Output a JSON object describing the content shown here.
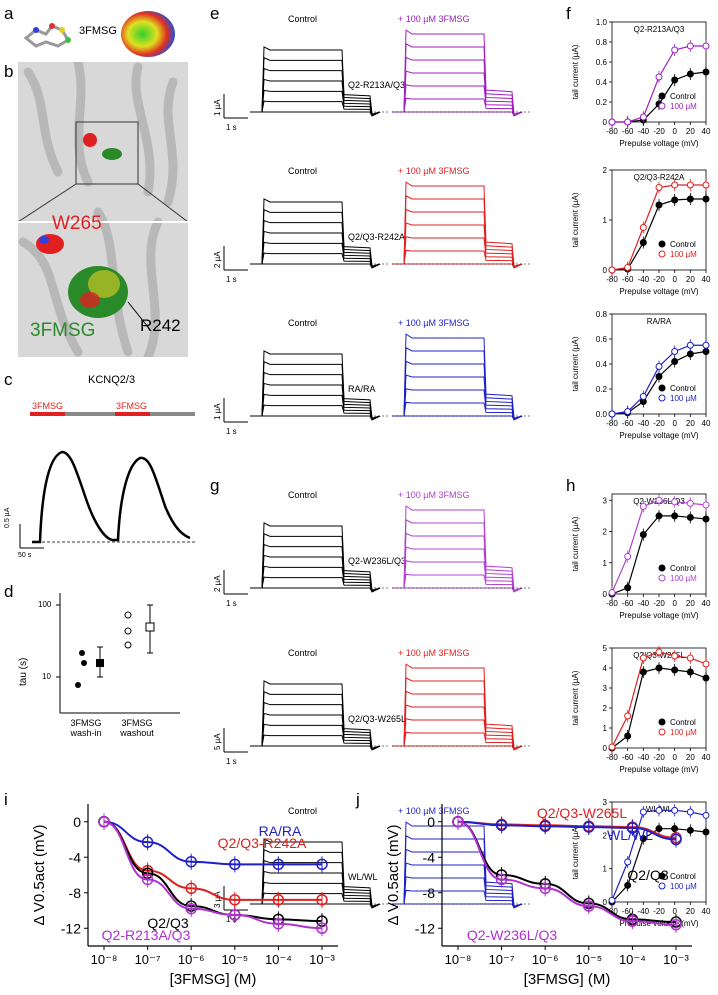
{
  "panels": {
    "a": {
      "label": "a",
      "compound": "3FMSG"
    },
    "b": {
      "label": "b",
      "residue1": "W265",
      "ligand": "3FMSG",
      "residue2": "R242"
    },
    "c": {
      "label": "c",
      "title": "KCNQ2/3",
      "drug1": "3FMSG",
      "drug2": "3FMSG",
      "scale_y": "0.5 µA",
      "scale_x": "50 s"
    },
    "d": {
      "label": "d",
      "ylabel": "tau (s)",
      "yticks": [
        "100",
        "10"
      ],
      "cat1_line1": "3FMSG",
      "cat1_line2": "wash-in",
      "cat2_line1": "3FMSG",
      "cat2_line2": "washout"
    },
    "e": {
      "label": "e",
      "rows": [
        {
          "control": "Control",
          "mutant": "Q2-R213A/Q3",
          "drug": "+ 100 µM 3FMSG",
          "scale_y": "1 µA",
          "scale_x": "1 s",
          "color": "#a020c0"
        },
        {
          "control": "Control",
          "mutant": "Q2/Q3-R242A",
          "drug": "+ 100 µM 3FMSG",
          "scale_y": "2 µA",
          "scale_x": "1 s",
          "color": "#e02020"
        },
        {
          "control": "Control",
          "mutant": "RA/RA",
          "drug": "+ 100 µM 3FMSG",
          "scale_y": "1 µA",
          "scale_x": "1 s",
          "color": "#1f1fc8"
        }
      ]
    },
    "g": {
      "label": "g",
      "rows": [
        {
          "control": "Control",
          "mutant": "Q2-W236L/Q3",
          "drug": "+ 100 µM 3FMSG",
          "scale_y": "2 µA",
          "scale_x": "1 s",
          "color": "#b040d0"
        },
        {
          "control": "Control",
          "mutant": "Q2/Q3-W265L",
          "drug": "+ 100 µM 3FMSG",
          "scale_y": "5 µA",
          "scale_x": "1 s",
          "color": "#e02020"
        },
        {
          "control": "Control",
          "mutant": "WL/WL",
          "drug": "+ 100 µM 3FMSG",
          "scale_y": "3 µA",
          "scale_x": "1 s",
          "color": "#1f1fc8"
        }
      ]
    },
    "f": {
      "label": "f"
    },
    "h": {
      "label": "h"
    },
    "i": {
      "label": "i"
    },
    "j": {
      "label": "j"
    }
  },
  "chart_data": [
    {
      "id": "f1",
      "type": "scatter",
      "title": "Q2-R213A/Q3",
      "xlabel": "Prepulse voltage (mV)",
      "ylabel": "tail current (µA)",
      "x": [
        -80,
        -60,
        -40,
        -20,
        0,
        20,
        40
      ],
      "xlim": [
        -80,
        40
      ],
      "ylim": [
        0,
        1.0
      ],
      "yticks": [
        "0",
        "0.2",
        "0.4",
        "0.6",
        "0.8",
        "1.0"
      ],
      "color": "#a020c0",
      "series": [
        {
          "name": "Control",
          "values": [
            0,
            0,
            0.02,
            0.18,
            0.42,
            0.48,
            0.5
          ]
        },
        {
          "name": "100 µM",
          "values": [
            0,
            0,
            0.05,
            0.45,
            0.72,
            0.76,
            0.76
          ]
        }
      ]
    },
    {
      "id": "f2",
      "type": "scatter",
      "title": "Q2/Q3-R242A",
      "xlabel": "Prepulse voltage (mV)",
      "ylabel": "tail current (µA)",
      "x": [
        -80,
        -60,
        -40,
        -20,
        0,
        20,
        40
      ],
      "xlim": [
        -80,
        40
      ],
      "ylim": [
        0,
        2
      ],
      "yticks": [
        "0",
        "1",
        "2"
      ],
      "color": "#e02020",
      "series": [
        {
          "name": "Control",
          "values": [
            0,
            0.02,
            0.55,
            1.3,
            1.4,
            1.42,
            1.42
          ]
        },
        {
          "name": "100 µM",
          "values": [
            0,
            0.05,
            0.85,
            1.65,
            1.7,
            1.7,
            1.7
          ]
        }
      ]
    },
    {
      "id": "f3",
      "type": "scatter",
      "title": "RA/RA",
      "xlabel": "Prepulse voltage (mV)",
      "ylabel": "tail current (µA)",
      "x": [
        -80,
        -60,
        -40,
        -20,
        0,
        20,
        40
      ],
      "xlim": [
        -80,
        40
      ],
      "ylim": [
        0,
        0.8
      ],
      "yticks": [
        "0.0",
        "0.2",
        "0.4",
        "0.6",
        "0.8"
      ],
      "color": "#1f1fc8",
      "series": [
        {
          "name": "Control",
          "values": [
            0,
            0.01,
            0.1,
            0.3,
            0.42,
            0.48,
            0.5
          ]
        },
        {
          "name": "100 µM",
          "values": [
            0,
            0.02,
            0.14,
            0.38,
            0.5,
            0.55,
            0.55
          ]
        }
      ]
    },
    {
      "id": "h1",
      "type": "scatter",
      "title": "Q2-W236L/Q3",
      "xlabel": "Prepulse voltage (mV)",
      "ylabel": "tail current (µA)",
      "x": [
        -80,
        -60,
        -40,
        -20,
        0,
        20,
        40
      ],
      "xlim": [
        -80,
        40
      ],
      "ylim": [
        0,
        3.2
      ],
      "yticks": [
        "0",
        "1",
        "2",
        "3"
      ],
      "color": "#b040d0",
      "series": [
        {
          "name": "Control",
          "values": [
            0,
            0.2,
            1.9,
            2.5,
            2.5,
            2.45,
            2.4
          ]
        },
        {
          "name": "100 µM",
          "values": [
            0.05,
            1.2,
            2.8,
            3.0,
            2.95,
            2.9,
            2.85
          ]
        }
      ]
    },
    {
      "id": "h2",
      "type": "scatter",
      "title": "Q2/Q3-W265L",
      "xlabel": "Prepulse voltage (mV)",
      "ylabel": "tail current (µA)",
      "x": [
        -80,
        -60,
        -40,
        -20,
        0,
        20,
        40
      ],
      "xlim": [
        -80,
        40
      ],
      "ylim": [
        0,
        5
      ],
      "yticks": [
        "0",
        "1",
        "2",
        "3",
        "4",
        "5"
      ],
      "color": "#e02020",
      "series": [
        {
          "name": "Control",
          "values": [
            0,
            0.6,
            3.8,
            4.0,
            3.9,
            3.8,
            3.5
          ]
        },
        {
          "name": "100 µM",
          "values": [
            0.05,
            1.6,
            4.5,
            4.8,
            4.6,
            4.5,
            4.2
          ]
        }
      ]
    },
    {
      "id": "h3",
      "type": "scatter",
      "title": "WL/WL",
      "xlabel": "Prepulse voltage (mV)",
      "ylabel": "tail current (µA)",
      "x": [
        -80,
        -60,
        -40,
        -20,
        0,
        20,
        40
      ],
      "xlim": [
        -80,
        40
      ],
      "ylim": [
        0,
        3
      ],
      "yticks": [
        "0",
        "1",
        "2",
        "3"
      ],
      "color": "#1f1fc8",
      "series": [
        {
          "name": "Control",
          "values": [
            0,
            0.5,
            1.9,
            2.2,
            2.2,
            2.15,
            2.1
          ]
        },
        {
          "name": "100 µM",
          "values": [
            0.05,
            1.2,
            2.7,
            2.75,
            2.75,
            2.7,
            2.6
          ]
        }
      ]
    },
    {
      "id": "i",
      "type": "line",
      "xlabel": "[3FMSG] (M)",
      "ylabel": "Δ V0.5act (mV)",
      "x": [
        "10⁻⁸",
        "10⁻⁷",
        "10⁻⁶",
        "10⁻⁵",
        "10⁻⁴",
        "10⁻³"
      ],
      "ylim": [
        -14,
        2
      ],
      "yticks": [
        "0",
        "-4",
        "-8",
        "-12"
      ],
      "series": [
        {
          "name": "RA/RA",
          "color": "#1f1fc8",
          "values": [
            0,
            -2.3,
            -4.5,
            -4.8,
            -4.8,
            -4.8
          ]
        },
        {
          "name": "Q2/Q3-R242A",
          "color": "#e02020",
          "values": [
            0,
            -5.5,
            -7.5,
            -8.8,
            -8.8,
            -8.8
          ]
        },
        {
          "name": "Q2/Q3",
          "color": "#000000",
          "values": [
            0,
            -5.8,
            -9.5,
            -10.5,
            -11,
            -11.2
          ]
        },
        {
          "name": "Q2-R213A/Q3",
          "color": "#b030d0",
          "values": [
            0,
            -6.5,
            -9.8,
            -10.5,
            -11.5,
            -12
          ]
        }
      ]
    },
    {
      "id": "j",
      "type": "line",
      "xlabel": "[3FMSG] (M)",
      "ylabel": "Δ V0.5act (mV)",
      "x": [
        "10⁻⁸",
        "10⁻⁷",
        "10⁻⁶",
        "10⁻⁵",
        "10⁻⁴",
        "10⁻³"
      ],
      "ylim": [
        -14,
        2
      ],
      "yticks": [
        "0",
        "-4",
        "-8",
        "-12"
      ],
      "series": [
        {
          "name": "Q2/Q3-W265L",
          "color": "#e02020",
          "values": [
            0,
            -0.3,
            -0.4,
            -0.5,
            -0.6,
            -1.8
          ]
        },
        {
          "name": "WL/WL",
          "color": "#1f1fc8",
          "values": [
            0,
            -0.4,
            -0.5,
            -0.6,
            -0.7,
            -2.0
          ]
        },
        {
          "name": "Q2/Q3",
          "color": "#000000",
          "values": [
            0,
            -6.0,
            -7.0,
            -9.2,
            -11,
            -11.3
          ]
        },
        {
          "name": "Q2-W236L/Q3",
          "color": "#b030d0",
          "values": [
            0,
            -6.5,
            -7.5,
            -9.5,
            -11.2,
            -11.6
          ]
        }
      ]
    }
  ]
}
